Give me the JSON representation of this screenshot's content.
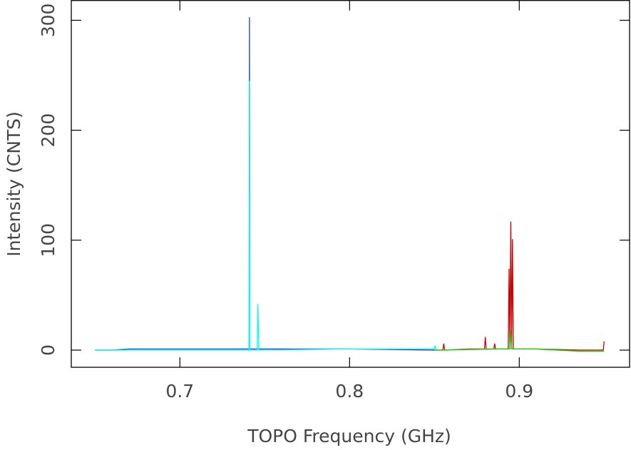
{
  "chart_data": {
    "type": "line",
    "x_label": "TOPO Frequency (GHz)",
    "y_label": "Intensity (CNTS)",
    "xlim": [
      0.636,
      0.965
    ],
    "ylim": [
      -15.6,
      318
    ],
    "xticks": [
      0.7,
      0.8,
      0.9
    ],
    "yticks": [
      0,
      100,
      200,
      300
    ],
    "series": [
      {
        "color": "#1c3fc0",
        "x": [
          0.65,
          0.66,
          0.67,
          0.72,
          0.7408,
          0.741,
          0.7412,
          0.745,
          0.8,
          0.85
        ],
        "values": [
          0,
          0,
          1,
          1,
          1,
          303,
          1,
          1,
          1,
          0
        ]
      },
      {
        "color": "#00ffff",
        "x": [
          0.65,
          0.66,
          0.7408,
          0.741,
          0.7412,
          0.7455,
          0.746,
          0.7465,
          0.8,
          0.85,
          0.8505,
          0.851
        ],
        "values": [
          0,
          0,
          0,
          245,
          0,
          0,
          42,
          0,
          1,
          1,
          4,
          0
        ]
      },
      {
        "color": "#cc0000",
        "x": [
          0.85,
          0.855,
          0.8555,
          0.856,
          0.87,
          0.8795,
          0.88,
          0.8805,
          0.885,
          0.8855,
          0.886,
          0.8935,
          0.894,
          0.8945,
          0.895,
          0.8955,
          0.896,
          0.8965,
          0.91,
          0.935,
          0.9495,
          0.95
        ],
        "values": [
          0,
          0,
          6,
          0,
          1,
          1,
          12,
          1,
          1,
          6,
          1,
          1,
          74,
          1,
          117,
          1,
          101,
          1,
          1,
          0,
          0,
          8
        ]
      },
      {
        "color": "#00e000",
        "x": [
          0.85,
          0.89,
          0.8945,
          0.895,
          0.8955,
          0.91,
          0.935,
          0.95
        ],
        "values": [
          0,
          1,
          1,
          18,
          1,
          1,
          -1,
          -1
        ]
      }
    ]
  }
}
